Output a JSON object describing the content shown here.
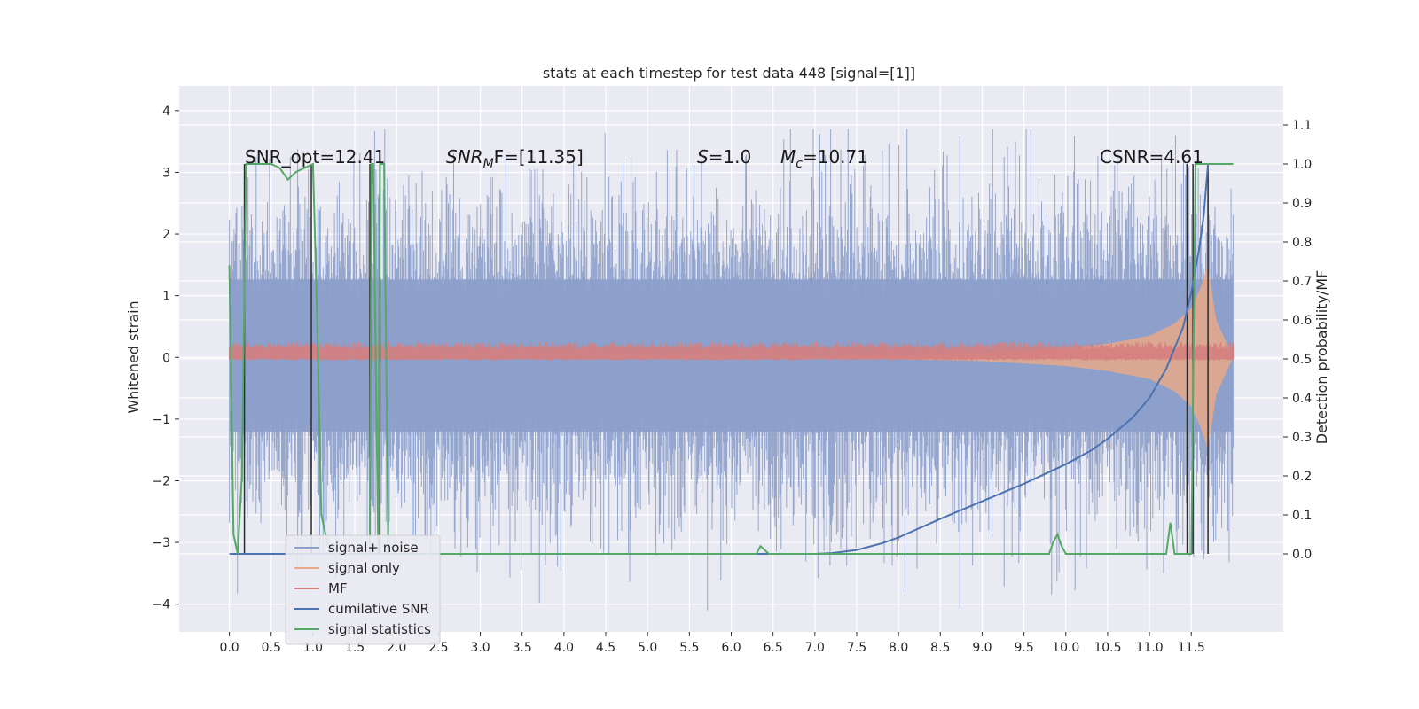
{
  "chart_data": {
    "type": "line",
    "title": "stats at each timestep for test data 448 [signal=[1]]",
    "xlabel": "",
    "ylabel": "Whitened strain",
    "ylabel_right": "Detection probability/MF",
    "xlim": [
      -0.6,
      12.6
    ],
    "ylim": [
      -4.45,
      4.4
    ],
    "ylim_right": [
      -0.2,
      1.2
    ],
    "x_ticks": [
      "0.0",
      "0.5",
      "1.0",
      "1.5",
      "2.0",
      "2.5",
      "3.0",
      "3.5",
      "4.0",
      "4.5",
      "5.0",
      "5.5",
      "6.0",
      "6.5",
      "7.0",
      "7.5",
      "8.0",
      "8.5",
      "9.0",
      "9.5",
      "10.0",
      "10.5",
      "11.0",
      "11.5"
    ],
    "y_ticks": [
      -4,
      -3,
      -2,
      -1,
      0,
      1,
      2,
      3,
      4
    ],
    "y_ticks_right": [
      "0.0",
      "0.1",
      "0.2",
      "0.3",
      "0.4",
      "0.5",
      "0.6",
      "0.7",
      "0.8",
      "0.9",
      "1.0",
      "1.1"
    ],
    "grid": true,
    "legend_position": "lower-left",
    "annotations": {
      "snr_opt": "SNR_opt=12.41",
      "snr_mf_prefix": "SNR",
      "snr_mf_sub": "M",
      "snr_mf_rest": "F=[11.35]",
      "s_var": "S",
      "s_rest": "=1.0",
      "mc_var": "M",
      "mc_sub": "c",
      "mc_rest": "=10.71",
      "csnr": "CSNR=4.61"
    },
    "series": [
      {
        "name": "signal+ noise",
        "color": "#8da0cb",
        "axis": "left",
        "envelope": {
          "x": [
            0.0,
            12.0
          ],
          "upper": [
            2.3,
            2.3
          ],
          "lower": [
            -2.2,
            -2.2
          ]
        }
      },
      {
        "name": "signal only",
        "color": "#e8a888",
        "axis": "left",
        "envelope": {
          "x": [
            0.0,
            7.5,
            9.0,
            10.0,
            10.5,
            11.0,
            11.3,
            11.5,
            11.6,
            11.7,
            11.8,
            12.0
          ],
          "upper": [
            0.0,
            0.01,
            0.06,
            0.14,
            0.22,
            0.35,
            0.55,
            0.8,
            1.1,
            1.5,
            0.6,
            0.0
          ],
          "lower": [
            0.0,
            -0.01,
            -0.06,
            -0.14,
            -0.22,
            -0.35,
            -0.55,
            -0.8,
            -1.1,
            -1.5,
            -0.6,
            0.0
          ]
        }
      },
      {
        "name": "MF",
        "color": "#d57e7e",
        "axis": "left",
        "envelope": {
          "x": [
            0.0,
            12.0
          ],
          "upper": [
            0.25,
            0.25
          ],
          "lower": [
            -0.05,
            -0.05
          ]
        }
      },
      {
        "name": "cumilative SNR",
        "color": "#4c72b0",
        "axis": "right",
        "x": [
          0.0,
          7.0,
          7.2,
          7.5,
          7.8,
          8.0,
          8.5,
          9.0,
          9.5,
          10.0,
          10.3,
          10.5,
          10.8,
          11.0,
          11.2,
          11.4,
          11.5,
          11.6,
          11.65,
          11.7
        ],
        "y": [
          0.0,
          0.0,
          0.002,
          0.01,
          0.027,
          0.042,
          0.09,
          0.135,
          0.18,
          0.23,
          0.265,
          0.295,
          0.35,
          0.4,
          0.475,
          0.58,
          0.67,
          0.79,
          0.87,
          1.0
        ]
      },
      {
        "name": "signal statistics",
        "color": "#55a868",
        "axis": "right",
        "x": [
          0.0,
          0.05,
          0.1,
          0.15,
          0.2,
          0.25,
          0.3,
          0.35,
          0.4,
          0.5,
          0.6,
          0.7,
          0.8,
          0.9,
          1.0,
          1.05,
          1.1,
          1.2,
          1.3,
          1.6,
          1.68,
          1.7,
          1.72,
          1.78,
          1.8,
          1.85,
          1.9,
          2.0,
          6.3,
          6.35,
          6.4,
          6.45,
          6.5,
          9.8,
          9.85,
          9.9,
          9.95,
          10.0,
          10.05,
          11.15,
          11.2,
          11.25,
          11.3,
          11.4,
          11.45,
          11.5,
          11.55,
          11.65,
          11.68,
          11.7,
          11.75,
          11.8,
          11.9,
          12.0
        ],
        "y": [
          0.74,
          0.05,
          0.0,
          0.2,
          1.0,
          1.0,
          1.0,
          1.0,
          1.0,
          1.0,
          0.99,
          0.96,
          0.98,
          0.99,
          1.0,
          0.6,
          0.1,
          0.0,
          0.0,
          0.0,
          0.0,
          1.0,
          1.0,
          0.0,
          1.0,
          1.0,
          0.0,
          0.0,
          0.0,
          0.02,
          0.01,
          0.0,
          0.0,
          0.0,
          0.03,
          0.05,
          0.02,
          0.0,
          0.0,
          0.0,
          0.0,
          0.08,
          0.0,
          0.0,
          0.0,
          0.0,
          1.0,
          1.0,
          1.0,
          1.0,
          1.0,
          1.0,
          1.0,
          1.0
        ]
      }
    ],
    "vertical_markers_x": [
      0.18,
      0.98,
      1.68,
      1.8,
      11.45,
      11.52,
      11.7
    ]
  }
}
